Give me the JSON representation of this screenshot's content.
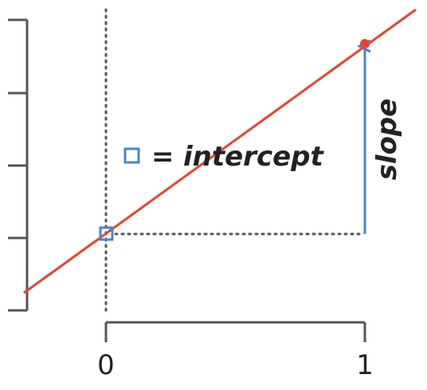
{
  "diagram": {
    "x_ticks": [
      "0",
      "1"
    ],
    "legend_equals": "=",
    "intercept_label": "intercept",
    "slope_label": "slope",
    "colors": {
      "line": "#e8432e",
      "axis": "#555555",
      "guide": "#555555",
      "arrow": "#4a86c6",
      "marker": "#4a86c6",
      "text": "#222222"
    }
  }
}
